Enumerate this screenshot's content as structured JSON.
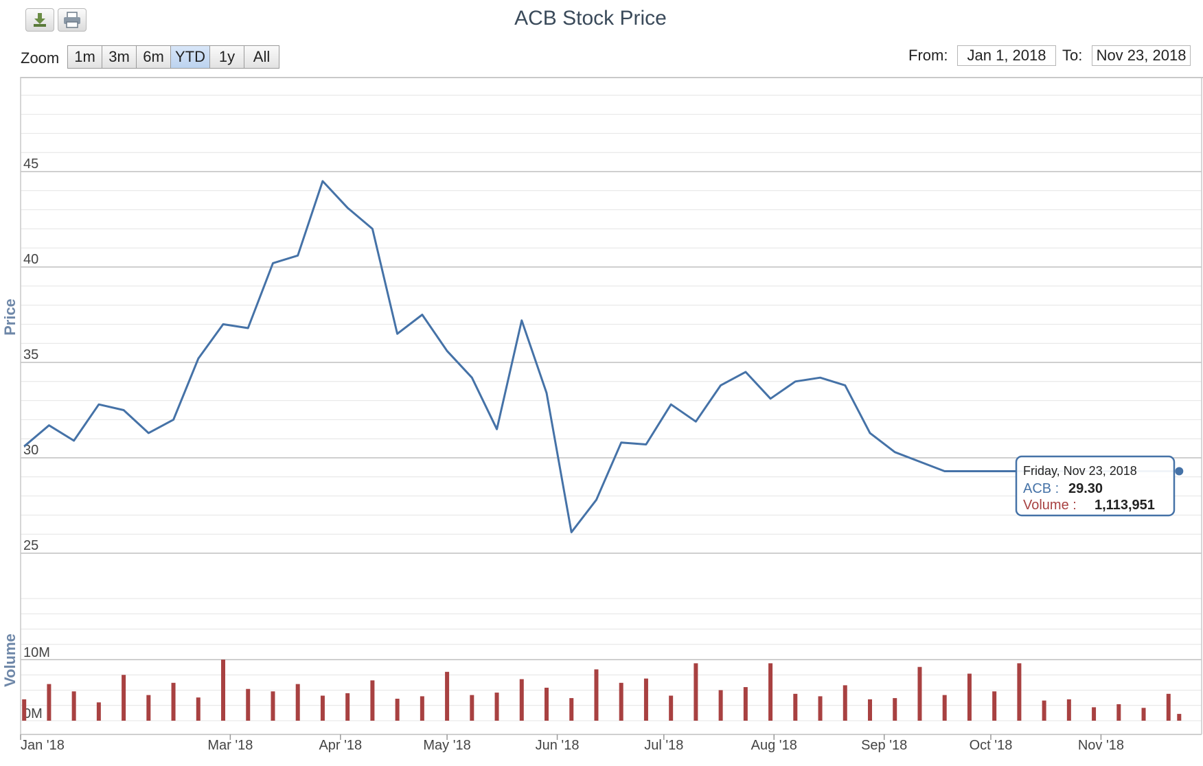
{
  "title": "ACB Stock Price",
  "toolbar": {
    "download_icon": "download-icon",
    "print_icon": "print-icon"
  },
  "zoom": {
    "label": "Zoom",
    "buttons": [
      "1m",
      "3m",
      "6m",
      "YTD",
      "1y",
      "All"
    ],
    "active": "YTD"
  },
  "range": {
    "from_label": "From:",
    "from_value": "Jan 1, 2018",
    "to_label": "To:",
    "to_value": "Nov 23, 2018"
  },
  "tooltip": {
    "date": "Friday, Nov 23, 2018",
    "series_label": "ACB :",
    "series_value": "29.30",
    "volume_label": "Volume :",
    "volume_value": "1,113,951"
  },
  "colors": {
    "price_line": "#4572a7",
    "volume_bar": "#a84141",
    "grid_major": "#bfbfbf",
    "grid_minor": "#e4e4e4"
  },
  "chart_data": [
    {
      "type": "line",
      "ylabel": "Price",
      "ylim": [
        25,
        45
      ],
      "yticks": [
        "25",
        "30",
        "35",
        "40",
        "45"
      ],
      "xticks": [
        "Jan '18",
        "Mar '18",
        "Apr '18",
        "May '18",
        "Jun '18",
        "Jul '18",
        "Aug '18",
        "Sep '18",
        "Oct '18",
        "Nov '18"
      ],
      "series": [
        {
          "name": "ACB",
          "x": [
            "2018-01-02",
            "2018-01-09",
            "2018-01-16",
            "2018-01-23",
            "2018-01-30",
            "2018-02-06",
            "2018-02-13",
            "2018-02-20",
            "2018-02-27",
            "2018-03-06",
            "2018-03-13",
            "2018-03-20",
            "2018-03-27",
            "2018-04-03",
            "2018-04-10",
            "2018-04-17",
            "2018-04-24",
            "2018-05-01",
            "2018-05-08",
            "2018-05-15",
            "2018-05-22",
            "2018-05-29",
            "2018-06-05",
            "2018-06-12",
            "2018-06-19",
            "2018-06-26",
            "2018-07-03",
            "2018-07-10",
            "2018-07-17",
            "2018-07-24",
            "2018-07-31",
            "2018-08-07",
            "2018-08-14",
            "2018-08-21",
            "2018-08-28",
            "2018-09-04",
            "2018-09-11",
            "2018-09-18",
            "2018-09-25",
            "2018-10-02",
            "2018-10-09",
            "2018-10-16",
            "2018-10-23",
            "2018-10-30",
            "2018-11-06",
            "2018-11-13",
            "2018-11-20",
            "2018-11-23"
          ],
          "y": [
            30.6,
            31.7,
            30.9,
            32.8,
            32.5,
            31.3,
            32.0,
            35.2,
            37.0,
            36.8,
            40.2,
            40.6,
            44.5,
            43.1,
            42.0,
            36.5,
            37.5,
            35.6,
            34.2,
            31.5,
            37.2,
            33.4,
            26.1,
            27.8,
            30.8,
            30.7,
            32.8,
            31.9,
            33.8,
            34.5,
            33.1,
            34.0,
            34.2,
            33.8,
            31.3,
            30.3,
            29.8,
            29.3,
            29.3,
            29.3,
            29.3,
            29.3,
            29.3,
            29.3,
            29.3,
            29.3,
            29.3,
            29.3
          ],
          "visible_range": "2018-01-01 to 2018-11-23"
        }
      ]
    },
    {
      "type": "bar",
      "ylabel": "Volume",
      "yticks": [
        "0M",
        "10M"
      ],
      "ylim": [
        0,
        10000000
      ],
      "series": [
        {
          "name": "Volume",
          "values": [
            3500000,
            6000000,
            4800000,
            3000000,
            7500000,
            4200000,
            6200000,
            3800000,
            10000000,
            5200000,
            4800000,
            6000000,
            4100000,
            4500000,
            6600000,
            3600000,
            4000000,
            8000000,
            4200000,
            4600000,
            6800000,
            5400000,
            3700000,
            8400000,
            6200000,
            6900000,
            4100000,
            9400000,
            5000000,
            5500000,
            9400000,
            4400000,
            4000000,
            5800000,
            3500000,
            3700000,
            8800000,
            4200000,
            7700000,
            4800000,
            9400000,
            3300000,
            3500000,
            2200000,
            2700000,
            2100000,
            4400000,
            1113951
          ]
        }
      ]
    }
  ]
}
